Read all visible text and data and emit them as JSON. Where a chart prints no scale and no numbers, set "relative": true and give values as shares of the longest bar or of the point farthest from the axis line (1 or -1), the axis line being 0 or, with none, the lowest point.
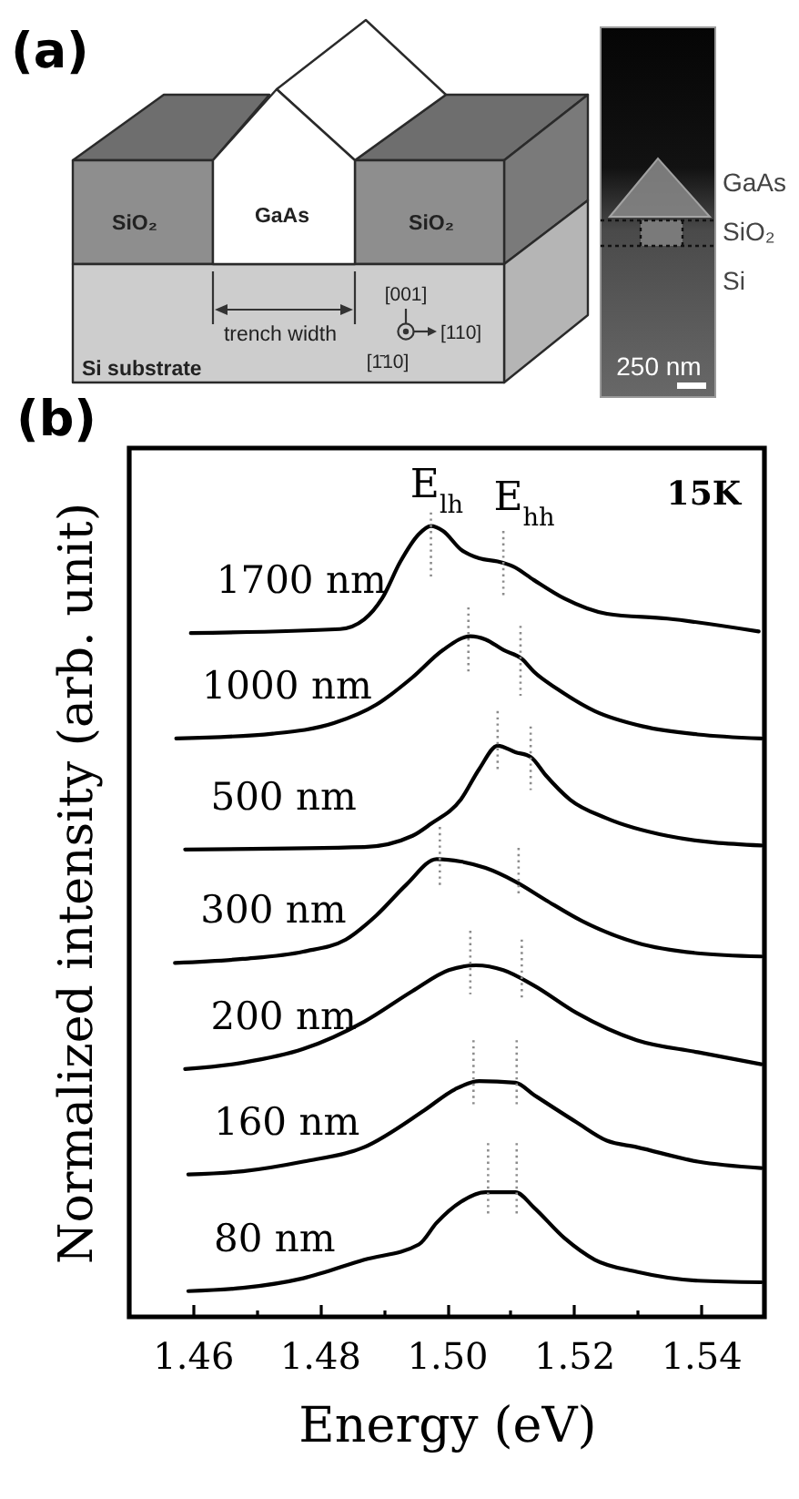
{
  "chart_data": [
    {
      "type": "other",
      "title": "(a)",
      "annotations": [
        "SiO₂",
        "GaAs",
        "SiO₂",
        "trench width",
        "[001]",
        "[110]",
        "[1̄10]",
        "Si substrate",
        "GaAs",
        "SiO₂",
        "Si",
        "250 nm"
      ]
    },
    {
      "type": "line",
      "title": "(b)",
      "xlabel": "Energy (eV)",
      "ylabel": "Normalized intensity (arb. unit)",
      "relative": true,
      "xlim": [
        1.45,
        1.55
      ],
      "xticks": [
        1.46,
        {
          "value": 1.47,
          "label": null
        },
        1.48,
        {
          "value": 1.49,
          "label": null
        },
        {
          "value": 1.5,
          "label": "1.50"
        },
        {
          "value": 1.51,
          "label": null
        },
        1.52,
        {
          "value": 1.53,
          "label": null
        },
        1.54
      ],
      "series": [
        {
          "name": "1700 nm",
          "color": "#000000",
          "x": [
            1.4597,
            1.4832,
            1.487,
            1.4898,
            1.4927,
            1.4956,
            1.4975,
            1.4994,
            1.5022,
            1.5051,
            1.508,
            1.5104,
            1.5137,
            1.5185,
            1.5252,
            1.5347,
            1.5491
          ],
          "values": [
            0.85,
            0.855,
            0.867,
            0.893,
            0.939,
            0.973,
            0.983,
            0.977,
            0.954,
            0.943,
            0.939,
            0.933,
            0.916,
            0.893,
            0.874,
            0.868,
            0.852
          ]
        },
        {
          "name": "1000 nm",
          "color": "#000000",
          "x": [
            1.4574,
            1.4726,
            1.4822,
            1.4889,
            1.4946,
            1.4994,
            1.5037,
            1.5061,
            1.5089,
            1.5118,
            1.5137,
            1.5175,
            1.5233,
            1.5309,
            1.5395,
            1.5495
          ],
          "values": [
            0.719,
            0.725,
            0.738,
            0.761,
            0.795,
            0.829,
            0.846,
            0.842,
            0.829,
            0.818,
            0.802,
            0.78,
            0.753,
            0.734,
            0.724,
            0.719
          ]
        },
        {
          "name": "500 nm",
          "color": "#000000",
          "x": [
            1.4588,
            1.487,
            1.4946,
            1.4975,
            1.5022,
            1.5051,
            1.508,
            1.5108,
            1.5132,
            1.5156,
            1.5194,
            1.5251,
            1.5347,
            1.5495
          ],
          "values": [
            0.581,
            0.584,
            0.598,
            0.613,
            0.643,
            0.681,
            0.71,
            0.702,
            0.696,
            0.673,
            0.643,
            0.62,
            0.598,
            0.586
          ]
        },
        {
          "name": "300 nm",
          "color": "#000000",
          "x": [
            1.4572,
            1.4679,
            1.4774,
            1.4841,
            1.4889,
            1.4936,
            1.4984,
            1.5022,
            1.5061,
            1.5108,
            1.5156,
            1.5213,
            1.5299,
            1.5395,
            1.5495
          ],
          "values": [
            0.44,
            0.445,
            0.454,
            0.469,
            0.499,
            0.537,
            0.569,
            0.566,
            0.558,
            0.541,
            0.518,
            0.492,
            0.465,
            0.452,
            0.448
          ]
        },
        {
          "name": "200 nm",
          "color": "#000000",
          "x": [
            1.4588,
            1.4679,
            1.4774,
            1.487,
            1.4946,
            1.5003,
            1.5046,
            1.5089,
            1.5137,
            1.5204,
            1.5299,
            1.5395,
            1.5495
          ],
          "values": [
            0.308,
            0.316,
            0.333,
            0.367,
            0.405,
            0.431,
            0.437,
            0.431,
            0.412,
            0.378,
            0.344,
            0.329,
            0.314
          ]
        },
        {
          "name": "160 nm",
          "color": "#000000",
          "x": [
            1.4593,
            1.4679,
            1.4774,
            1.487,
            1.4965,
            1.5013,
            1.5051,
            1.5108,
            1.5137,
            1.5204,
            1.5252,
            1.5299,
            1.5395,
            1.5495
          ],
          "values": [
            0.177,
            0.181,
            0.193,
            0.211,
            0.257,
            0.283,
            0.293,
            0.291,
            0.276,
            0.242,
            0.219,
            0.211,
            0.193,
            0.185
          ]
        },
        {
          "name": "80 nm",
          "color": "#000000",
          "x": [
            1.4593,
            1.4679,
            1.4774,
            1.487,
            1.4956,
            1.4984,
            1.5022,
            1.5061,
            1.5108,
            1.5137,
            1.5185,
            1.5233,
            1.5299,
            1.5395,
            1.5495
          ],
          "values": [
            0.032,
            0.036,
            0.048,
            0.071,
            0.09,
            0.117,
            0.143,
            0.155,
            0.155,
            0.136,
            0.098,
            0.071,
            0.056,
            0.045,
            0.043
          ]
        },
        {
          "color": "#8c8c8c",
          "line_style": "dotted",
          "x": [
            1.4975,
            1.4975
          ],
          "values": [
            1.0,
            0.92
          ]
        },
        {
          "color": "#8c8c8c",
          "line_style": "dotted",
          "x": [
            1.5034,
            1.5034
          ],
          "values": [
            0.882,
            0.802
          ]
        },
        {
          "color": "#8c8c8c",
          "line_style": "dotted",
          "x": [
            1.508,
            1.508
          ],
          "values": [
            0.753,
            0.677
          ]
        },
        {
          "color": "#8c8c8c",
          "line_style": "dotted",
          "x": [
            1.4989,
            1.4989
          ],
          "values": [
            0.609,
            0.536
          ]
        },
        {
          "color": "#8c8c8c",
          "line_style": "dotted",
          "x": [
            1.5037,
            1.5037
          ],
          "values": [
            0.48,
            0.401
          ]
        },
        {
          "color": "#8c8c8c",
          "line_style": "dotted",
          "x": [
            1.5042,
            1.5042
          ],
          "values": [
            0.344,
            0.264
          ]
        },
        {
          "color": "#8c8c8c",
          "line_style": "dotted",
          "x": [
            1.5065,
            1.5065
          ],
          "values": [
            0.216,
            0.124
          ]
        },
        {
          "color": "#8c8c8c",
          "line_style": "dotted",
          "x": [
            1.5089,
            1.5089
          ],
          "values": [
            0.977,
            0.893
          ]
        },
        {
          "color": "#8c8c8c",
          "line_style": "dotted",
          "x": [
            1.5116,
            1.5116
          ],
          "values": [
            0.859,
            0.772
          ]
        },
        {
          "color": "#8c8c8c",
          "line_style": "dotted",
          "x": [
            1.5132,
            1.5132
          ],
          "values": [
            0.734,
            0.655
          ]
        },
        {
          "color": "#8c8c8c",
          "line_style": "dotted",
          "x": [
            1.5113,
            1.5113
          ],
          "values": [
            0.583,
            0.522
          ]
        },
        {
          "color": "#8c8c8c",
          "line_style": "dotted",
          "x": [
            1.5118,
            1.5118
          ],
          "values": [
            0.469,
            0.393
          ]
        },
        {
          "color": "#8c8c8c",
          "line_style": "dotted",
          "x": [
            1.511,
            1.511
          ],
          "values": [
            0.344,
            0.264
          ]
        },
        {
          "color": "#8c8c8c",
          "line_style": "dotted",
          "x": [
            1.511,
            1.511
          ],
          "values": [
            0.216,
            0.124
          ]
        }
      ],
      "annotations": [
        "E$_{lh}$",
        "E$_{hh}$",
        "15K"
      ]
    }
  ]
}
